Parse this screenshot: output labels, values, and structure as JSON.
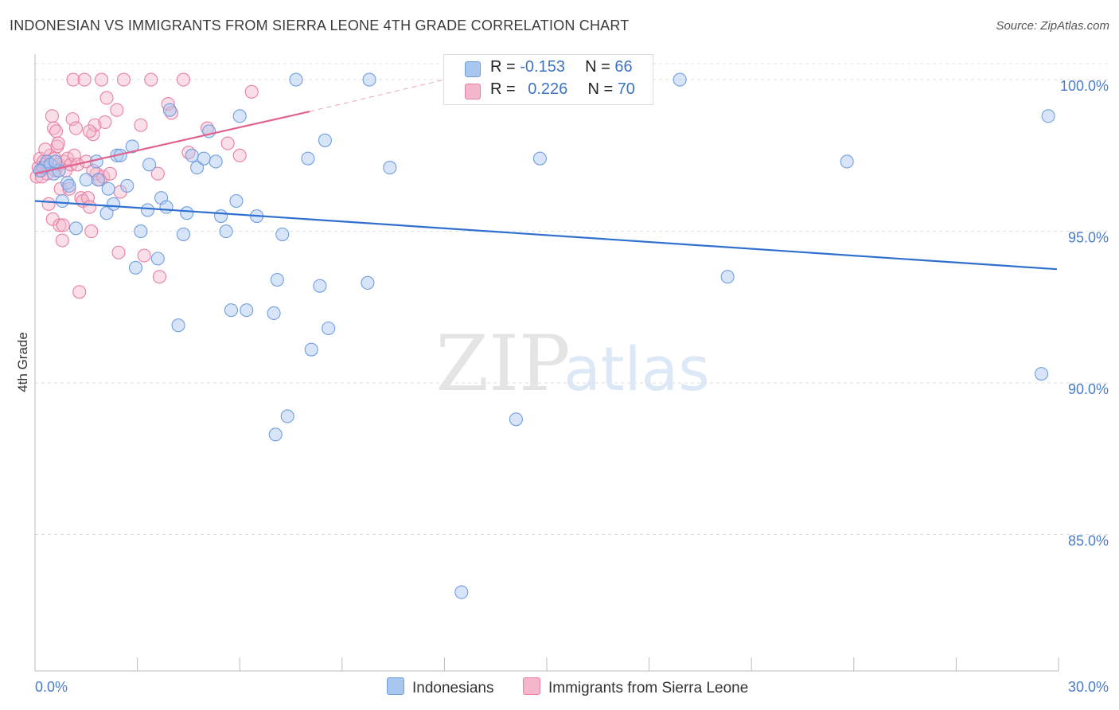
{
  "header": {
    "title": "INDONESIAN VS IMMIGRANTS FROM SIERRA LEONE 4TH GRADE CORRELATION CHART",
    "source": "Source: ZipAtlas.com"
  },
  "legend_stats": [
    {
      "r_label": "R = ",
      "r_value": "-0.153",
      "n_label": "N = ",
      "n_value": "66",
      "color": "#a9c6ef"
    },
    {
      "r_label": "R = ",
      "r_value": "0.226",
      "n_label": "N = ",
      "n_value": "70",
      "color": "#f5b6cb"
    }
  ],
  "bottom_legend": [
    {
      "label": "Indonesians",
      "color": "#a9c6ef"
    },
    {
      "label": "Immigrants from Sierra Leone",
      "color": "#f5b6cb"
    }
  ],
  "watermark": {
    "zip": "ZIP",
    "atlas": "atlas"
  },
  "colors": {
    "blue_fill": "#a9c6ef",
    "blue_stroke": "#6f9ee0",
    "blue_line": "#2f6fcf",
    "pink_fill": "#f5b6cb",
    "pink_stroke": "#e97fa3",
    "pink_line": "#e0628e",
    "tick_color": "#4a7cc7",
    "grid": "#dddddd"
  },
  "chart_data": {
    "type": "scatter",
    "title": "INDONESIAN VS IMMIGRANTS FROM SIERRA LEONE 4TH GRADE CORRELATION CHART",
    "xlabel": "",
    "ylabel": "4th Grade",
    "xlim": [
      0,
      30
    ],
    "ylim": [
      80.5,
      101.0
    ],
    "x_tick_labels": [
      "0.0%",
      "30.0%"
    ],
    "y_ticks": [
      85,
      90,
      95,
      100
    ],
    "y_tick_labels": [
      "85.0%",
      "90.0%",
      "95.0%",
      "100.0%"
    ],
    "grid": true,
    "legend_position": "top-center",
    "series": [
      {
        "name": "Indonesians",
        "color": "#a9c6ef",
        "trend": {
          "x": [
            0.0,
            29.95
          ],
          "y": [
            96.0,
            93.75
          ]
        },
        "points": [
          [
            0.25,
            97.1
          ],
          [
            0.35,
            97.3
          ],
          [
            0.45,
            97.2
          ],
          [
            0.55,
            96.9
          ],
          [
            0.7,
            97.0
          ],
          [
            0.8,
            96.0
          ],
          [
            0.95,
            96.6
          ],
          [
            1.2,
            95.1
          ],
          [
            1.5,
            96.7
          ],
          [
            1.8,
            97.3
          ],
          [
            1.85,
            96.7
          ],
          [
            2.1,
            95.6
          ],
          [
            2.15,
            96.4
          ],
          [
            2.3,
            95.9
          ],
          [
            2.4,
            97.5
          ],
          [
            2.5,
            97.5
          ],
          [
            2.7,
            96.5
          ],
          [
            2.85,
            97.8
          ],
          [
            2.95,
            93.8
          ],
          [
            3.1,
            95.0
          ],
          [
            3.3,
            95.7
          ],
          [
            3.35,
            97.2
          ],
          [
            3.6,
            94.1
          ],
          [
            3.7,
            96.1
          ],
          [
            3.85,
            95.8
          ],
          [
            3.95,
            99.0
          ],
          [
            4.2,
            91.9
          ],
          [
            4.35,
            94.9
          ],
          [
            4.45,
            95.6
          ],
          [
            4.6,
            97.5
          ],
          [
            4.75,
            97.1
          ],
          [
            4.95,
            97.4
          ],
          [
            5.1,
            98.3
          ],
          [
            5.3,
            97.3
          ],
          [
            5.45,
            95.5
          ],
          [
            5.6,
            95.0
          ],
          [
            5.75,
            92.4
          ],
          [
            5.9,
            96.0
          ],
          [
            6.0,
            98.8
          ],
          [
            6.2,
            92.4
          ],
          [
            6.5,
            95.5
          ],
          [
            7.0,
            92.3
          ],
          [
            7.05,
            88.3
          ],
          [
            7.1,
            93.4
          ],
          [
            7.25,
            94.9
          ],
          [
            7.4,
            88.9
          ],
          [
            7.65,
            100.0
          ],
          [
            8.0,
            97.4
          ],
          [
            8.1,
            91.1
          ],
          [
            8.35,
            93.2
          ],
          [
            8.5,
            98.0
          ],
          [
            8.6,
            91.8
          ],
          [
            9.75,
            93.3
          ],
          [
            9.8,
            100.0
          ],
          [
            10.4,
            97.1
          ],
          [
            12.5,
            83.1
          ],
          [
            14.1,
            88.8
          ],
          [
            14.8,
            97.4
          ],
          [
            18.9,
            100.0
          ],
          [
            20.3,
            93.5
          ],
          [
            23.8,
            97.3
          ],
          [
            29.5,
            90.3
          ],
          [
            29.7,
            98.8
          ],
          [
            0.15,
            97.0
          ],
          [
            0.6,
            97.3
          ],
          [
            1.0,
            96.5
          ]
        ]
      },
      {
        "name": "Immigrants from Sierra Leone",
        "color": "#f5b6cb",
        "trend": {
          "x": [
            0.0,
            8.05
          ],
          "y": [
            96.9,
            98.95
          ]
        },
        "trend_dashed": {
          "x": [
            8.05,
            12.0
          ],
          "y": [
            98.95,
            100.0
          ]
        },
        "points": [
          [
            0.05,
            96.8
          ],
          [
            0.1,
            97.1
          ],
          [
            0.15,
            97.4
          ],
          [
            0.2,
            97.0
          ],
          [
            0.25,
            97.3
          ],
          [
            0.3,
            97.2
          ],
          [
            0.35,
            96.9
          ],
          [
            0.4,
            95.9
          ],
          [
            0.45,
            97.5
          ],
          [
            0.5,
            98.8
          ],
          [
            0.52,
            95.4
          ],
          [
            0.55,
            98.4
          ],
          [
            0.6,
            97.0
          ],
          [
            0.62,
            98.3
          ],
          [
            0.65,
            97.8
          ],
          [
            0.7,
            97.2
          ],
          [
            0.72,
            95.2
          ],
          [
            0.75,
            96.4
          ],
          [
            0.8,
            94.7
          ],
          [
            0.82,
            95.2
          ],
          [
            0.85,
            97.3
          ],
          [
            0.9,
            97.0
          ],
          [
            0.95,
            97.4
          ],
          [
            1.0,
            96.4
          ],
          [
            1.05,
            97.2
          ],
          [
            1.1,
            98.7
          ],
          [
            1.12,
            100.0
          ],
          [
            1.15,
            97.5
          ],
          [
            1.2,
            98.4
          ],
          [
            1.25,
            97.2
          ],
          [
            1.3,
            93.0
          ],
          [
            1.35,
            96.1
          ],
          [
            1.4,
            96.0
          ],
          [
            1.45,
            100.0
          ],
          [
            1.5,
            97.3
          ],
          [
            1.55,
            96.1
          ],
          [
            1.6,
            95.8
          ],
          [
            1.65,
            95.0
          ],
          [
            1.7,
            98.2
          ],
          [
            1.75,
            98.5
          ],
          [
            1.8,
            96.9
          ],
          [
            1.9,
            96.7
          ],
          [
            1.95,
            100.0
          ],
          [
            2.0,
            96.8
          ],
          [
            2.05,
            98.6
          ],
          [
            2.1,
            99.4
          ],
          [
            2.2,
            96.9
          ],
          [
            2.4,
            99.0
          ],
          [
            2.45,
            94.3
          ],
          [
            2.5,
            96.3
          ],
          [
            2.6,
            100.0
          ],
          [
            3.1,
            98.5
          ],
          [
            3.2,
            94.2
          ],
          [
            3.4,
            100.0
          ],
          [
            3.6,
            96.9
          ],
          [
            3.65,
            93.5
          ],
          [
            3.9,
            99.2
          ],
          [
            4.0,
            98.9
          ],
          [
            4.35,
            100.0
          ],
          [
            4.5,
            97.6
          ],
          [
            5.05,
            98.4
          ],
          [
            5.65,
            97.9
          ],
          [
            6.0,
            97.5
          ],
          [
            6.35,
            99.6
          ],
          [
            0.3,
            97.7
          ],
          [
            0.68,
            97.9
          ],
          [
            1.6,
            98.3
          ],
          [
            1.7,
            97.0
          ],
          [
            0.2,
            96.8
          ],
          [
            0.58,
            97.4
          ]
        ]
      }
    ]
  }
}
